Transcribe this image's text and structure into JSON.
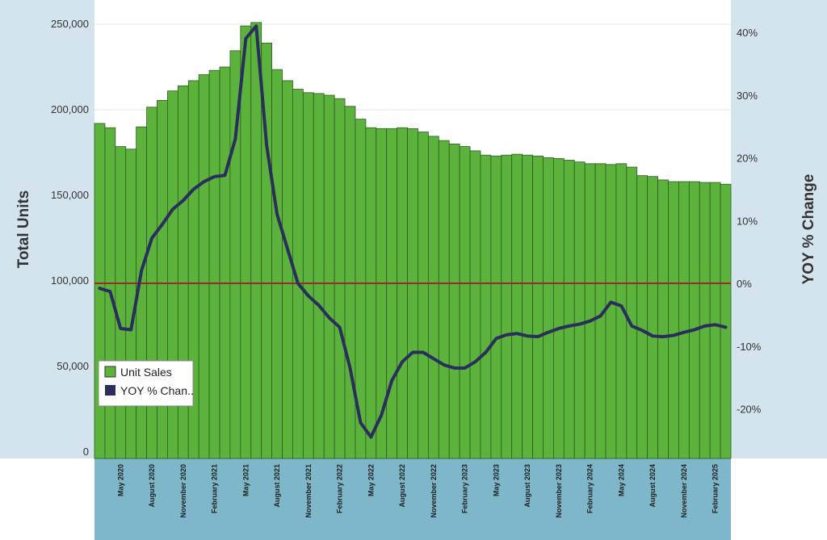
{
  "chart_data": {
    "type": "bar+line",
    "left_axis": {
      "title": "Total Units",
      "ylim": [
        0,
        250000
      ],
      "ticks": [
        0,
        50000,
        100000,
        150000,
        200000,
        250000
      ],
      "tick_labels": [
        "0",
        "50,000",
        "100,000",
        "150,000",
        "200,000",
        "250,000"
      ]
    },
    "right_axis": {
      "title": "YOY % Change",
      "ylim": [
        -27,
        43
      ],
      "ticks": [
        -20,
        -10,
        0,
        10,
        20,
        30,
        40
      ],
      "tick_labels": [
        "-20%",
        "-10%",
        "0%",
        "10%",
        "20%",
        "30%",
        "40%"
      ]
    },
    "x_labels": [
      {
        "index": 2,
        "label": "May 2020"
      },
      {
        "index": 5,
        "label": "August 2020"
      },
      {
        "index": 8,
        "label": "November 2020"
      },
      {
        "index": 11,
        "label": "February 2021"
      },
      {
        "index": 14,
        "label": "May 2021"
      },
      {
        "index": 17,
        "label": "August 2021"
      },
      {
        "index": 20,
        "label": "November 2021"
      },
      {
        "index": 23,
        "label": "February 2022"
      },
      {
        "index": 26,
        "label": "May 2022"
      },
      {
        "index": 29,
        "label": "August 2022"
      },
      {
        "index": 32,
        "label": "November 2022"
      },
      {
        "index": 35,
        "label": "February 2023"
      },
      {
        "index": 38,
        "label": "May 2023"
      },
      {
        "index": 41,
        "label": "August 2023"
      },
      {
        "index": 44,
        "label": "November 2023"
      },
      {
        "index": 47,
        "label": "February 2024"
      },
      {
        "index": 50,
        "label": "May 2024"
      },
      {
        "index": 53,
        "label": "August 2024"
      },
      {
        "index": 56,
        "label": "November 2024"
      },
      {
        "index": 59,
        "label": "February 2025"
      }
    ],
    "series": [
      {
        "name": "Unit Sales",
        "kind": "bar",
        "axis": "left",
        "color": "#5bb33b",
        "values": [
          192000,
          189500,
          178500,
          177000,
          190000,
          201500,
          205500,
          211000,
          214000,
          217000,
          220500,
          223000,
          225000,
          234500,
          249000,
          251000,
          239000,
          223500,
          217000,
          212000,
          210000,
          209500,
          208500,
          206500,
          202000,
          194500,
          189500,
          189000,
          189000,
          189500,
          189000,
          187000,
          184500,
          182000,
          180000,
          178500,
          176000,
          173500,
          173000,
          173500,
          174000,
          173500,
          173000,
          172000,
          171500,
          170500,
          169500,
          168500,
          168500,
          168000,
          168500,
          166500,
          161500,
          161000,
          159000,
          158000,
          158000,
          158000,
          157500,
          157500,
          156500
        ]
      },
      {
        "name": "YOY % Chan..",
        "kind": "line",
        "axis": "right",
        "color": "#2a2e5c",
        "values": [
          -0.8,
          -1.3,
          -7.2,
          -7.4,
          2.0,
          7.2,
          9.4,
          11.8,
          13.2,
          15.0,
          16.2,
          17.0,
          17.2,
          23.0,
          39.0,
          41.0,
          22.0,
          11.0,
          5.5,
          0.0,
          -2.0,
          -3.5,
          -5.5,
          -7.0,
          -13.5,
          -22.2,
          -24.5,
          -21.0,
          -15.5,
          -12.5,
          -11.0,
          -11.0,
          -12.0,
          -13.0,
          -13.5,
          -13.5,
          -12.5,
          -11.0,
          -8.8,
          -8.2,
          -8.0,
          -8.4,
          -8.5,
          -7.8,
          -7.2,
          -6.8,
          -6.5,
          -6.0,
          -5.2,
          -3.0,
          -3.6,
          -6.8,
          -7.5,
          -8.4,
          -8.5,
          -8.3,
          -7.8,
          -7.4,
          -6.8,
          -6.6,
          -7.0
        ]
      }
    ],
    "reference_line": {
      "axis": "right",
      "value": 0,
      "color": "#9b2a2a"
    },
    "legend": {
      "position": "bottom-left",
      "entries": [
        "Unit Sales",
        "YOY % Chan.."
      ]
    }
  }
}
